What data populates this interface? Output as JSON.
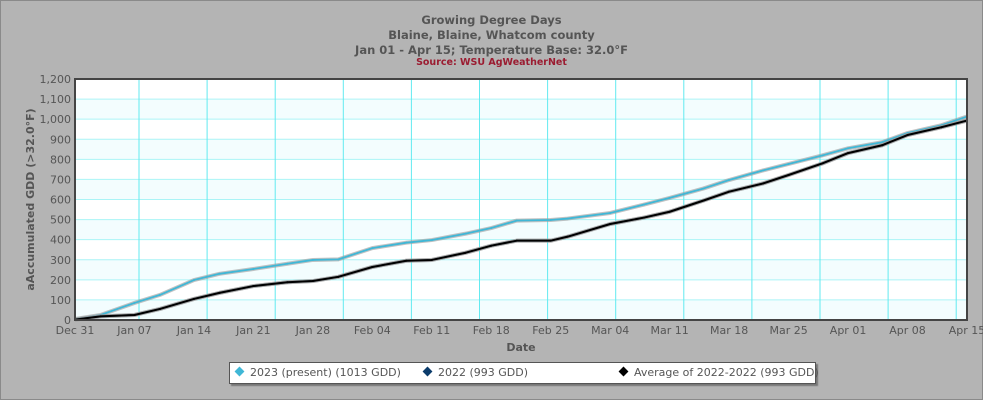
{
  "chart_data": {
    "type": "line",
    "title": "Growing Degree Days",
    "subtitle": "Blaine, Blaine, Whatcom county",
    "subtitle2": "Jan 01 - Apr 15; Temperature Base: 32.0°F",
    "source": "Source:  WSU AgWeatherNet",
    "xlabel": "Date",
    "ylabel": "aAccumulated GDD (>32.0°F)",
    "ylim": [
      0,
      1200
    ],
    "yticks": [
      "0",
      "100",
      "200",
      "300",
      "400",
      "500",
      "600",
      "700",
      "800",
      "900",
      "1,000",
      "1,100",
      "1,200"
    ],
    "xlim": [
      "Dec 31",
      "Apr 15"
    ],
    "xticks": [
      "Dec 31",
      "Jan 07",
      "Jan 14",
      "Jan 21",
      "Jan 28",
      "Feb 04",
      "Feb 11",
      "Feb 18",
      "Feb 25",
      "Mar 04",
      "Mar 11",
      "Mar 18",
      "Mar 25",
      "Apr 01",
      "Apr 08",
      "Apr 15"
    ],
    "grid": true,
    "legend_position": "bottom",
    "x": [
      "Dec 31",
      "Jan 03",
      "Jan 07",
      "Jan 10",
      "Jan 14",
      "Jan 17",
      "Jan 21",
      "Jan 25",
      "Jan 28",
      "Jan 31",
      "Feb 04",
      "Feb 08",
      "Feb 11",
      "Feb 15",
      "Feb 18",
      "Feb 21",
      "Feb 25",
      "Feb 27",
      "Mar 04",
      "Mar 08",
      "Mar 11",
      "Mar 15",
      "Mar 18",
      "Mar 22",
      "Mar 25",
      "Mar 29",
      "Apr 01",
      "Apr 05",
      "Apr 08",
      "Apr 12",
      "Apr 15"
    ],
    "series": [
      {
        "name": "2023 (present) (1013 GDD)",
        "color": "#3fb7d6",
        "values": [
          5,
          25,
          85,
          125,
          199,
          230,
          254,
          280,
          299,
          302,
          358,
          385,
          398,
          430,
          458,
          495,
          498,
          505,
          533,
          575,
          608,
          655,
          697,
          745,
          777,
          820,
          855,
          885,
          931,
          970,
          1013
        ]
      },
      {
        "name": "2022 (993 GDD)",
        "color": "#0b3c6b",
        "values": [
          2,
          18,
          25,
          55,
          105,
          135,
          169,
          188,
          194,
          215,
          264,
          295,
          299,
          335,
          370,
          395,
          395,
          415,
          478,
          510,
          539,
          595,
          639,
          680,
          722,
          780,
          831,
          870,
          921,
          960,
          993
        ]
      },
      {
        "name": "Average of 2022-2022 (993 GDD)",
        "color": "#000000",
        "values": [
          2,
          18,
          25,
          55,
          105,
          135,
          169,
          188,
          194,
          215,
          264,
          295,
          299,
          335,
          370,
          395,
          395,
          415,
          478,
          510,
          539,
          595,
          639,
          680,
          722,
          780,
          831,
          870,
          921,
          960,
          993
        ]
      }
    ]
  }
}
